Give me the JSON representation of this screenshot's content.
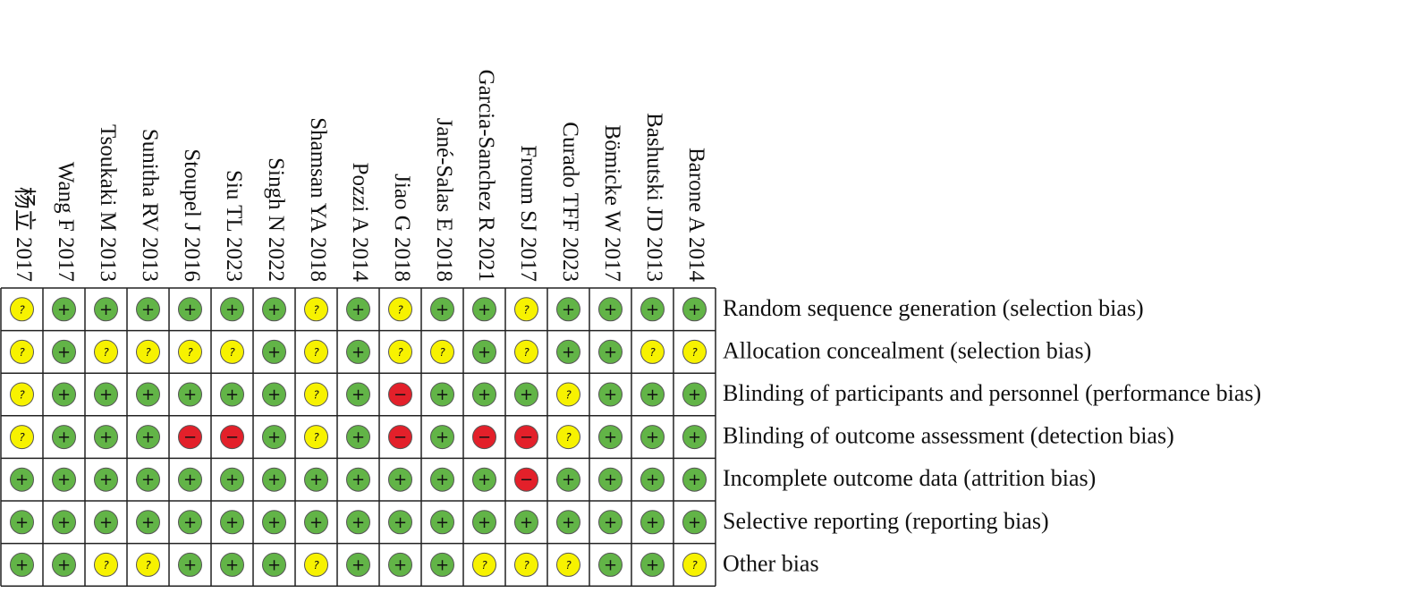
{
  "studies": [
    "杨立 2017",
    "Wang F 2017",
    "Tsoukaki M 2013",
    "Sunitha RV 2013",
    "Stoupel J 2016",
    "Siu TL 2023",
    "Singh N 2022",
    "Shamsan YA 2018",
    "Pozzi A 2014",
    "Jiao G 2018",
    "Jané-Salas E 2018",
    "Garcia-Sanchez R 2021",
    "Froum SJ 2017",
    "Curado TFF 2023",
    "Bömicke W 2017",
    "Bashutski JD 2013",
    "Barone A 2014"
  ],
  "domains": [
    "Random sequence generation (selection bias)",
    "Allocation concealment (selection bias)",
    "Blinding of participants and personnel (performance bias)",
    "Blinding of outcome assessment (detection bias)",
    "Incomplete outcome data (attrition bias)",
    "Selective reporting (reporting bias)",
    "Other bias"
  ],
  "judgements": [
    [
      "?",
      "+",
      "+",
      "+",
      "+",
      "+",
      "+",
      "?",
      "+",
      "?",
      "+",
      "+",
      "?",
      "+",
      "+",
      "+",
      "+"
    ],
    [
      "?",
      "+",
      "?",
      "?",
      "?",
      "?",
      "+",
      "?",
      "+",
      "?",
      "?",
      "+",
      "?",
      "+",
      "+",
      "?",
      "?"
    ],
    [
      "?",
      "+",
      "+",
      "+",
      "+",
      "+",
      "+",
      "?",
      "+",
      "−",
      "+",
      "+",
      "+",
      "?",
      "+",
      "+",
      "+"
    ],
    [
      "?",
      "+",
      "+",
      "+",
      "−",
      "−",
      "+",
      "?",
      "+",
      "−",
      "+",
      "−",
      "−",
      "?",
      "+",
      "+",
      "+"
    ],
    [
      "+",
      "+",
      "+",
      "+",
      "+",
      "+",
      "+",
      "+",
      "+",
      "+",
      "+",
      "+",
      "−",
      "+",
      "+",
      "+",
      "+"
    ],
    [
      "+",
      "+",
      "+",
      "+",
      "+",
      "+",
      "+",
      "+",
      "+",
      "+",
      "+",
      "+",
      "+",
      "+",
      "+",
      "+",
      "+"
    ],
    [
      "+",
      "+",
      "?",
      "?",
      "+",
      "+",
      "+",
      "?",
      "+",
      "+",
      "+",
      "?",
      "?",
      "?",
      "+",
      "+",
      "?"
    ]
  ],
  "colors": {
    "+": "#62b447",
    "?": "#f7f200",
    "−": "#e3202a"
  }
}
